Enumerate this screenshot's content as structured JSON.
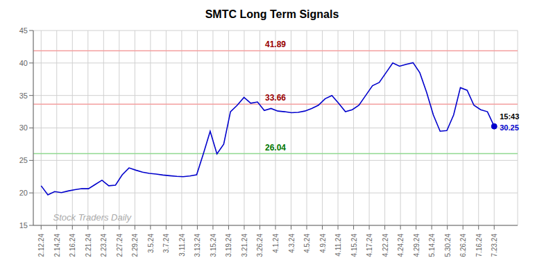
{
  "chart_data": {
    "type": "line",
    "title": "SMTC Long Term Signals",
    "grid": true,
    "xlim": [
      -0.5,
      30.5
    ],
    "xticks": [
      {
        "value": 0,
        "label": "2.12.24"
      },
      {
        "value": 1,
        "label": "2.14.24"
      },
      {
        "value": 2,
        "label": "2.16.24"
      },
      {
        "value": 3,
        "label": "2.21.24"
      },
      {
        "value": 4,
        "label": "2.23.24"
      },
      {
        "value": 5,
        "label": "2.27.24"
      },
      {
        "value": 6,
        "label": "2.29.24"
      },
      {
        "value": 7,
        "label": "3.5.24"
      },
      {
        "value": 8,
        "label": "3.7.24"
      },
      {
        "value": 9,
        "label": "3.11.24"
      },
      {
        "value": 10,
        "label": "3.13.24"
      },
      {
        "value": 11,
        "label": "3.15.24"
      },
      {
        "value": 12,
        "label": "3.19.24"
      },
      {
        "value": 13,
        "label": "3.21.24"
      },
      {
        "value": 14,
        "label": "3.26.24"
      },
      {
        "value": 15,
        "label": "4.1.24"
      },
      {
        "value": 16,
        "label": "4.3.24"
      },
      {
        "value": 17,
        "label": "4.5.24"
      },
      {
        "value": 18,
        "label": "4.9.24"
      },
      {
        "value": 19,
        "label": "4.11.24"
      },
      {
        "value": 20,
        "label": "4.15.24"
      },
      {
        "value": 21,
        "label": "4.17.24"
      },
      {
        "value": 22,
        "label": "4.22.24"
      },
      {
        "value": 23,
        "label": "4.24.24"
      },
      {
        "value": 24,
        "label": "4.29.24"
      },
      {
        "value": 25,
        "label": "5.14.24"
      },
      {
        "value": 26,
        "label": "5.30.24"
      },
      {
        "value": 27,
        "label": "6.26.24"
      },
      {
        "value": 28,
        "label": "7.16.24"
      },
      {
        "value": 29,
        "label": "7.23.24"
      }
    ],
    "ylim": [
      15,
      45
    ],
    "yticks": [
      15,
      20,
      25,
      30,
      35,
      40,
      45
    ],
    "x": [
      0,
      0.4328,
      0.8657,
      1.2985,
      1.7313,
      2.1642,
      2.597,
      3.0299,
      3.4627,
      3.8955,
      4.3284,
      4.7612,
      5.194,
      5.6269,
      6.0597,
      6.4925,
      6.9254,
      7.3582,
      7.791,
      8.2239,
      8.6567,
      9.0896,
      9.5224,
      9.9552,
      10.3881,
      10.8209,
      11.2537,
      11.6866,
      12.1194,
      12.5522,
      12.9851,
      13.4179,
      13.8507,
      14.2836,
      14.7164,
      15.1493,
      15.5821,
      16.0149,
      16.4478,
      16.8806,
      17.3134,
      17.7463,
      18.1791,
      18.6119,
      19.0448,
      19.4776,
      19.9104,
      20.3433,
      20.7761,
      21.209,
      21.6418,
      22.0746,
      22.5075,
      22.9403,
      23.3731,
      23.806,
      24.2388,
      24.6716,
      25.1045,
      25.5373,
      25.9701,
      26.403,
      26.8358,
      27.2687,
      27.7015,
      28.1343,
      28.5672,
      29
    ],
    "series": [
      {
        "name": "SMTC",
        "color": "#0000cc",
        "values": [
          21.1,
          19.7,
          20.2,
          20.05,
          20.3,
          20.5,
          20.65,
          20.65,
          21.3,
          21.95,
          21.1,
          21.2,
          22.8,
          23.85,
          23.5,
          23.2,
          23.0,
          22.9,
          22.75,
          22.65,
          22.55,
          22.5,
          22.6,
          22.8,
          26.04,
          29.5,
          26.0,
          27.5,
          32.5,
          33.5,
          34.7,
          33.8,
          34.0,
          32.7,
          33.0,
          32.6,
          32.5,
          32.35,
          32.4,
          32.6,
          33.0,
          33.5,
          34.5,
          35.0,
          33.8,
          32.5,
          32.8,
          33.5,
          35.0,
          36.5,
          37.0,
          38.5,
          40.0,
          39.5,
          39.8,
          40.05,
          38.5,
          35.5,
          32.0,
          29.5,
          29.6,
          32.0,
          36.2,
          35.8,
          33.5,
          32.8,
          32.5,
          30.25
        ]
      }
    ],
    "hlines": [
      {
        "value": 41.89,
        "label": "41.89",
        "color": "#f4a0a0",
        "label_color": "#990000"
      },
      {
        "value": 33.66,
        "label": "33.66",
        "color": "#f4a0a0",
        "label_color": "#990000"
      },
      {
        "value": 26.04,
        "label": "26.04",
        "color": "#90d890",
        "label_color": "#007700"
      }
    ],
    "points": [
      {
        "x": 29,
        "y": 30.25,
        "color": "#0000cc"
      }
    ],
    "annotations": [
      {
        "x": 29,
        "y": 30.25,
        "label": "15:43",
        "color": "#000000"
      },
      {
        "x": 29,
        "y": 30.25,
        "label": "30.25",
        "color": "#0000cc"
      },
      {
        "x": 0.5,
        "y": 16.2,
        "label": "Stock Traders Daily",
        "color": "#aaaaaa"
      }
    ]
  }
}
